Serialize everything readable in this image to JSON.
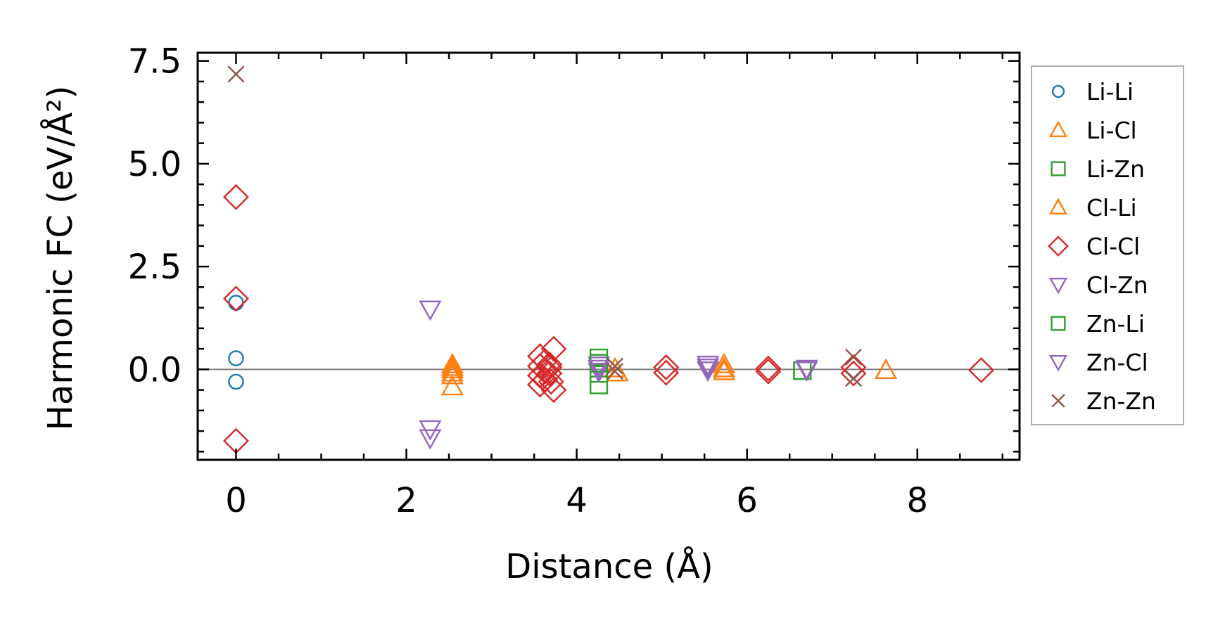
{
  "chart_data": {
    "type": "scatter",
    "title": "",
    "xlabel": "Distance (Å)",
    "ylabel": "Harmonic FC (eV/Å²)",
    "xlim": [
      -0.45,
      9.2
    ],
    "ylim": [
      -2.2,
      7.7
    ],
    "xticks": [
      0,
      2,
      4,
      6,
      8
    ],
    "xtick_labels": [
      "0",
      "2",
      "4",
      "6",
      "8"
    ],
    "yticks": [
      0.0,
      2.5,
      5.0,
      7.5
    ],
    "ytick_labels": [
      "0.0",
      "2.5",
      "5.0",
      "7.5"
    ],
    "grid": false,
    "zero_line": true,
    "legend_position": "outside-right",
    "series": [
      {
        "name": "Li-Li",
        "marker": "circle",
        "color": "#1f77b4",
        "points": [
          [
            0,
            1.62
          ],
          [
            0,
            0.27
          ],
          [
            0,
            -0.3
          ]
        ]
      },
      {
        "name": "Li-Cl",
        "marker": "triangle-up",
        "color": "#ff7f0e",
        "points": [
          [
            2.54,
            0.12
          ],
          [
            2.54,
            0.0
          ],
          [
            2.54,
            -0.15
          ],
          [
            2.54,
            -0.42
          ],
          [
            4.48,
            -0.08
          ],
          [
            4.45,
            0.02
          ],
          [
            5.73,
            0.12
          ],
          [
            5.73,
            -0.05
          ],
          [
            7.63,
            -0.02
          ]
        ]
      },
      {
        "name": "Li-Zn",
        "marker": "square",
        "color": "#2ca02c",
        "points": [
          [
            4.26,
            0.28
          ],
          [
            4.26,
            -0.1
          ],
          [
            4.26,
            -0.38
          ],
          [
            6.65,
            -0.03
          ]
        ]
      },
      {
        "name": "Cl-Li",
        "marker": "triangle-up",
        "color": "#ff7f0e",
        "points": [
          [
            2.54,
            0.05
          ],
          [
            2.54,
            -0.08
          ],
          [
            5.73,
            0.02
          ],
          [
            7.63,
            -0.02
          ]
        ]
      },
      {
        "name": "Cl-Cl",
        "marker": "diamond",
        "color": "#d62728",
        "points": [
          [
            0,
            4.19
          ],
          [
            0,
            1.72
          ],
          [
            0,
            -1.74
          ],
          [
            3.57,
            0.32
          ],
          [
            3.57,
            0.08
          ],
          [
            3.57,
            -0.15
          ],
          [
            3.57,
            -0.37
          ],
          [
            3.63,
            0.2
          ],
          [
            3.63,
            -0.05
          ],
          [
            3.63,
            -0.25
          ],
          [
            3.68,
            0.12
          ],
          [
            3.68,
            -0.1
          ],
          [
            3.7,
            -0.3
          ],
          [
            3.73,
            0.5
          ],
          [
            3.73,
            -0.5
          ],
          [
            3.68,
            0.05
          ],
          [
            5.05,
            0.05
          ],
          [
            5.05,
            -0.08
          ],
          [
            6.25,
            0.02
          ],
          [
            6.25,
            -0.05
          ],
          [
            7.25,
            0.05
          ],
          [
            7.25,
            -0.1
          ],
          [
            8.75,
            -0.02
          ]
        ]
      },
      {
        "name": "Cl-Zn",
        "marker": "triangle-down",
        "color": "#9467bd",
        "points": [
          [
            2.28,
            1.46
          ],
          [
            2.28,
            -1.45
          ],
          [
            2.28,
            -1.67
          ],
          [
            4.26,
            0.1
          ],
          [
            4.26,
            -0.05
          ],
          [
            5.54,
            0.12
          ],
          [
            5.54,
            -0.02
          ],
          [
            6.7,
            0.02
          ]
        ]
      },
      {
        "name": "Zn-Li",
        "marker": "square",
        "color": "#2ca02c",
        "points": [
          [
            4.26,
            0.15
          ],
          [
            6.65,
            -0.03
          ]
        ]
      },
      {
        "name": "Zn-Cl",
        "marker": "triangle-down",
        "color": "#9467bd",
        "points": [
          [
            4.26,
            0.02
          ],
          [
            5.54,
            0.05
          ],
          [
            6.7,
            -0.02
          ]
        ]
      },
      {
        "name": "Zn-Zn",
        "marker": "x",
        "color": "#8c564b",
        "points": [
          [
            0,
            7.18
          ],
          [
            4.45,
            0.08
          ],
          [
            4.45,
            -0.05
          ],
          [
            7.25,
            0.3
          ],
          [
            7.25,
            -0.22
          ]
        ]
      }
    ]
  }
}
